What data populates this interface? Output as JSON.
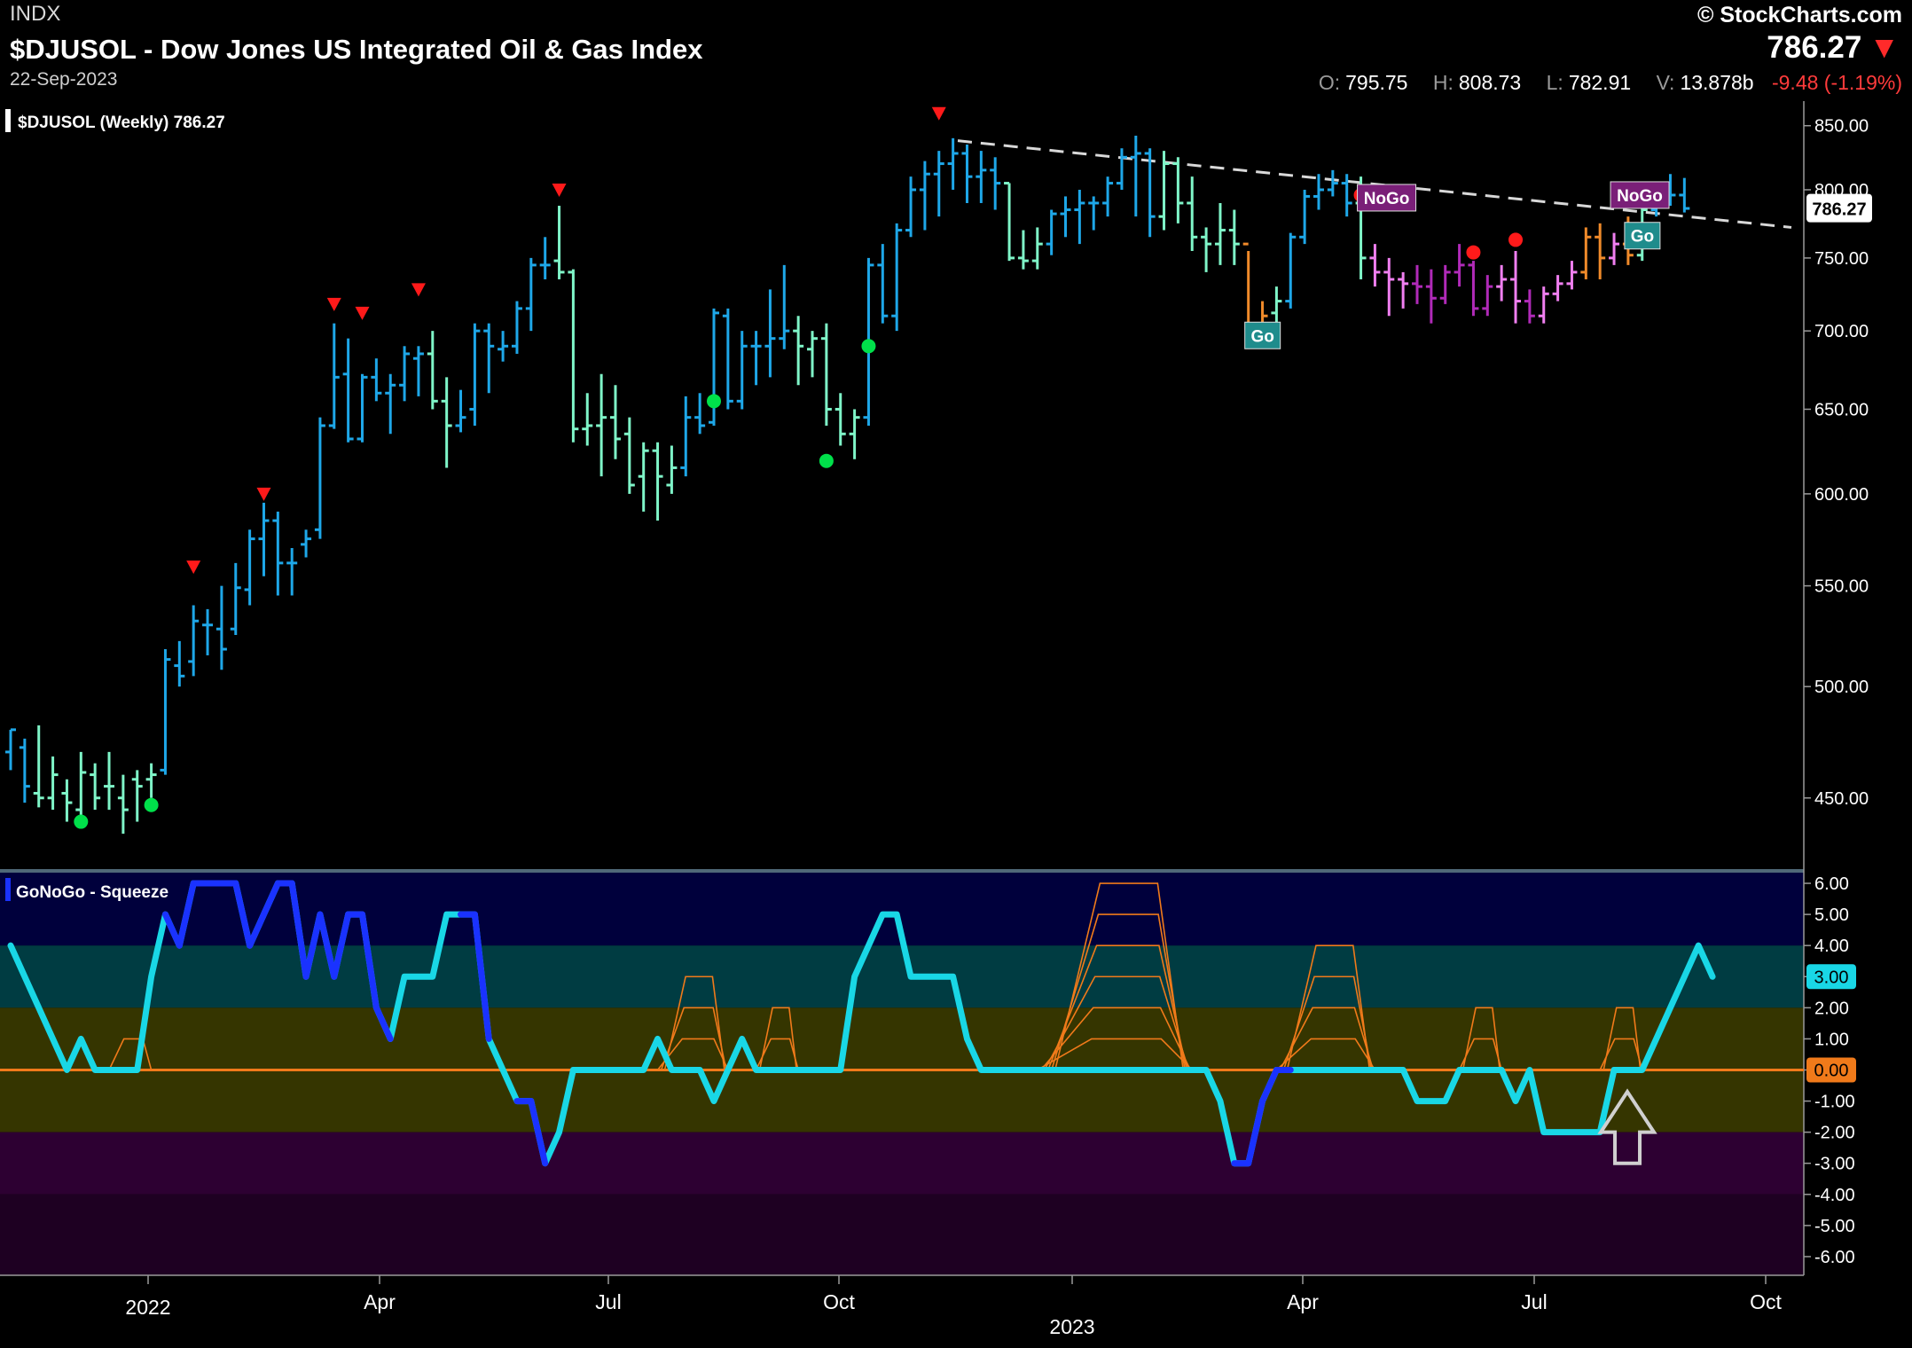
{
  "header": {
    "exchange": "INDX",
    "title": "$DJUSOL - Dow Jones US Integrated Oil & Gas Index",
    "date": "22-Sep-2023",
    "brand": "© StockCharts.com",
    "last_price": "786.27",
    "open_label": "O:",
    "open": "795.75",
    "high_label": "H:",
    "high": "808.73",
    "low_label": "L:",
    "low": "782.91",
    "volume_label": "V:",
    "volume": "13.878b",
    "change": "-9.48 (-1.19%)"
  },
  "colors": {
    "bright_blue": "#1ea7e8",
    "aqua": "#7ff5c8",
    "pink": "#f07ff0",
    "purple": "#b02ab8",
    "amber": "#f08a2a",
    "oscillator_cyan": "#19d7e6",
    "oscillator_blue": "#1a32ff",
    "zero_line": "#f07a1a",
    "up_dot": "#00e04a",
    "down_marker": "#ff1a1a"
  },
  "chart_data": [
    {
      "type": "ohlc-bar",
      "legend": "$DJUSOL (Weekly) 786.27",
      "last_value_tag": "786.27",
      "y_scale": "log",
      "ylim": [
        420,
        870
      ],
      "y_ticks": [
        "850.00",
        "800.00",
        "750.00",
        "700.00",
        "650.00",
        "600.00",
        "550.00",
        "500.00",
        "450.00"
      ],
      "x_labels": [
        "2022",
        "Apr",
        "Jul",
        "Oct",
        "2023",
        "Apr",
        "Jul",
        "Oct"
      ],
      "trendline": {
        "style": "dashed",
        "from": 838,
        "to": 772
      },
      "bars": [
        [
          470,
          480,
          462,
          480,
          "bright_blue"
        ],
        [
          472,
          476,
          448,
          455,
          "bright_blue"
        ],
        [
          452,
          482,
          446,
          450,
          "aqua"
        ],
        [
          450,
          468,
          445,
          460,
          "aqua"
        ],
        [
          452,
          458,
          440,
          448,
          "aqua"
        ],
        [
          445,
          470,
          440,
          461,
          "aqua"
        ],
        [
          460,
          465,
          445,
          450,
          "aqua"
        ],
        [
          455,
          470,
          445,
          455,
          "aqua"
        ],
        [
          450,
          460,
          435,
          445,
          "aqua"
        ],
        [
          458,
          462,
          440,
          455,
          "aqua"
        ],
        [
          458,
          465,
          450,
          460,
          "aqua"
        ],
        [
          462,
          518,
          460,
          513,
          "bright_blue"
        ],
        [
          510,
          522,
          500,
          505,
          "bright_blue"
        ],
        [
          512,
          540,
          505,
          532,
          "bright_blue"
        ],
        [
          530,
          538,
          515,
          530,
          "bright_blue"
        ],
        [
          528,
          550,
          508,
          518,
          "bright_blue"
        ],
        [
          528,
          562,
          525,
          549,
          "bright_blue"
        ],
        [
          548,
          580,
          540,
          575,
          "bright_blue"
        ],
        [
          575,
          595,
          555,
          585,
          "bright_blue"
        ],
        [
          585,
          590,
          545,
          562,
          "bright_blue"
        ],
        [
          562,
          570,
          545,
          562,
          "bright_blue"
        ],
        [
          572,
          580,
          565,
          575,
          "bright_blue"
        ],
        [
          580,
          645,
          575,
          640,
          "bright_blue"
        ],
        [
          640,
          705,
          638,
          670,
          "bright_blue"
        ],
        [
          672,
          695,
          630,
          632,
          "bright_blue"
        ],
        [
          632,
          672,
          630,
          670,
          "bright_blue"
        ],
        [
          670,
          682,
          655,
          660,
          "bright_blue"
        ],
        [
          660,
          672,
          635,
          665,
          "bright_blue"
        ],
        [
          665,
          690,
          655,
          685,
          "bright_blue"
        ],
        [
          682,
          690,
          658,
          685,
          "bright_blue"
        ],
        [
          685,
          700,
          650,
          655,
          "aqua"
        ],
        [
          655,
          670,
          615,
          640,
          "aqua"
        ],
        [
          640,
          662,
          636,
          645,
          "bright_blue"
        ],
        [
          650,
          705,
          640,
          700,
          "bright_blue"
        ],
        [
          700,
          705,
          660,
          690,
          "bright_blue"
        ],
        [
          688,
          700,
          680,
          690,
          "bright_blue"
        ],
        [
          690,
          720,
          685,
          715,
          "bright_blue"
        ],
        [
          715,
          750,
          700,
          745,
          "bright_blue"
        ],
        [
          745,
          765,
          735,
          745,
          "bright_blue"
        ],
        [
          748,
          788,
          735,
          740,
          "aqua"
        ],
        [
          740,
          742,
          630,
          638,
          "aqua"
        ],
        [
          638,
          660,
          628,
          640,
          "aqua"
        ],
        [
          640,
          672,
          610,
          645,
          "aqua"
        ],
        [
          645,
          665,
          620,
          632,
          "aqua"
        ],
        [
          635,
          645,
          600,
          605,
          "aqua"
        ],
        [
          610,
          630,
          590,
          625,
          "aqua"
        ],
        [
          625,
          630,
          585,
          610,
          "aqua"
        ],
        [
          605,
          628,
          600,
          615,
          "aqua"
        ],
        [
          615,
          658,
          610,
          645,
          "bright_blue"
        ],
        [
          645,
          660,
          635,
          640,
          "bright_blue"
        ],
        [
          642,
          715,
          640,
          712,
          "bright_blue"
        ],
        [
          710,
          715,
          650,
          655,
          "bright_blue"
        ],
        [
          655,
          700,
          650,
          690,
          "bright_blue"
        ],
        [
          690,
          700,
          665,
          690,
          "bright_blue"
        ],
        [
          690,
          728,
          670,
          695,
          "bright_blue"
        ],
        [
          695,
          745,
          688,
          700,
          "bright_blue"
        ],
        [
          700,
          710,
          665,
          690,
          "aqua"
        ],
        [
          688,
          700,
          670,
          695,
          "aqua"
        ],
        [
          695,
          705,
          640,
          650,
          "aqua"
        ],
        [
          650,
          660,
          628,
          635,
          "aqua"
        ],
        [
          635,
          650,
          620,
          645,
          "aqua"
        ],
        [
          645,
          750,
          640,
          745,
          "bright_blue"
        ],
        [
          745,
          760,
          705,
          710,
          "bright_blue"
        ],
        [
          710,
          775,
          700,
          770,
          "bright_blue"
        ],
        [
          770,
          810,
          765,
          800,
          "bright_blue"
        ],
        [
          800,
          822,
          770,
          812,
          "bright_blue"
        ],
        [
          812,
          830,
          780,
          820,
          "bright_blue"
        ],
        [
          820,
          840,
          800,
          828,
          "bright_blue"
        ],
        [
          828,
          835,
          790,
          810,
          "bright_blue"
        ],
        [
          810,
          830,
          790,
          815,
          "bright_blue"
        ],
        [
          815,
          825,
          785,
          805,
          "bright_blue"
        ],
        [
          805,
          805,
          748,
          750,
          "aqua"
        ],
        [
          750,
          770,
          742,
          748,
          "aqua"
        ],
        [
          748,
          772,
          742,
          760,
          "aqua"
        ],
        [
          760,
          785,
          752,
          782,
          "bright_blue"
        ],
        [
          782,
          795,
          765,
          785,
          "bright_blue"
        ],
        [
          785,
          800,
          760,
          790,
          "bright_blue"
        ],
        [
          790,
          795,
          770,
          790,
          "bright_blue"
        ],
        [
          790,
          810,
          780,
          805,
          "bright_blue"
        ],
        [
          805,
          832,
          800,
          825,
          "bright_blue"
        ],
        [
          825,
          842,
          780,
          828,
          "bright_blue"
        ],
        [
          828,
          832,
          765,
          780,
          "bright_blue"
        ],
        [
          780,
          830,
          770,
          820,
          "aqua"
        ],
        [
          820,
          825,
          775,
          790,
          "aqua"
        ],
        [
          790,
          810,
          755,
          765,
          "aqua"
        ],
        [
          765,
          772,
          740,
          760,
          "aqua"
        ],
        [
          760,
          790,
          745,
          770,
          "aqua"
        ],
        [
          770,
          785,
          745,
          760,
          "aqua"
        ],
        [
          760,
          755,
          690,
          700,
          "amber"
        ],
        [
          700,
          720,
          695,
          710,
          "amber"
        ],
        [
          712,
          730,
          705,
          720,
          "aqua"
        ],
        [
          720,
          768,
          715,
          765,
          "bright_blue"
        ],
        [
          765,
          800,
          760,
          795,
          "bright_blue"
        ],
        [
          795,
          812,
          785,
          800,
          "bright_blue"
        ],
        [
          800,
          815,
          795,
          805,
          "bright_blue"
        ],
        [
          805,
          812,
          780,
          790,
          "bright_blue"
        ],
        [
          790,
          810,
          735,
          750,
          "aqua"
        ],
        [
          750,
          760,
          730,
          740,
          "pink"
        ],
        [
          740,
          750,
          710,
          735,
          "pink"
        ],
        [
          735,
          740,
          715,
          732,
          "pink"
        ],
        [
          732,
          745,
          718,
          730,
          "purple"
        ],
        [
          730,
          742,
          705,
          722,
          "purple"
        ],
        [
          722,
          745,
          718,
          740,
          "purple"
        ],
        [
          740,
          760,
          730,
          745,
          "purple"
        ],
        [
          745,
          748,
          710,
          715,
          "purple"
        ],
        [
          715,
          738,
          710,
          730,
          "purple"
        ],
        [
          730,
          745,
          720,
          735,
          "pink"
        ],
        [
          735,
          755,
          705,
          720,
          "pink"
        ],
        [
          720,
          728,
          705,
          710,
          "purple"
        ],
        [
          710,
          730,
          705,
          725,
          "pink"
        ],
        [
          725,
          738,
          720,
          732,
          "pink"
        ],
        [
          732,
          748,
          728,
          740,
          "pink"
        ],
        [
          740,
          772,
          735,
          765,
          "amber"
        ],
        [
          765,
          775,
          735,
          750,
          "amber"
        ],
        [
          750,
          768,
          745,
          760,
          "pink"
        ],
        [
          760,
          780,
          745,
          752,
          "amber"
        ],
        [
          752,
          790,
          748,
          785,
          "aqua"
        ],
        [
          785,
          802,
          780,
          795,
          "bright_blue"
        ],
        [
          795,
          812,
          788,
          796,
          "bright_blue"
        ],
        [
          796,
          809,
          783,
          786,
          "bright_blue"
        ]
      ],
      "up_dots": [
        {
          "bar": 5,
          "price": 440
        },
        {
          "bar": 10,
          "price": 447
        },
        {
          "bar": 50,
          "price": 655
        },
        {
          "bar": 58,
          "price": 619
        },
        {
          "bar": 61,
          "price": 690
        }
      ],
      "down_markers": [
        {
          "bar": 13,
          "price": 560
        },
        {
          "bar": 18,
          "price": 600
        },
        {
          "bar": 23,
          "price": 718
        },
        {
          "bar": 25,
          "price": 712
        },
        {
          "bar": 29,
          "price": 728
        },
        {
          "bar": 39,
          "price": 800
        },
        {
          "bar": 66,
          "price": 860
        }
      ],
      "bear_dots": [
        {
          "bar": 96,
          "price": 796
        },
        {
          "bar": 104,
          "price": 754
        },
        {
          "bar": 107,
          "price": 763
        }
      ],
      "labels": [
        {
          "text": "Go",
          "bar": 88,
          "price": 697,
          "color": "#1f8c8c"
        },
        {
          "text": "NoGo",
          "bar": 96,
          "price": 794,
          "color": "#7a1f78"
        },
        {
          "text": "NoGo",
          "bar": 114,
          "price": 796,
          "color": "#7a1f78"
        },
        {
          "text": "Go",
          "bar": 115,
          "price": 766,
          "color": "#1f8c8c"
        }
      ]
    },
    {
      "type": "line",
      "name": "GoNoGo - Squeeze",
      "last_value_tag": "3.00",
      "zero_tag": "0.00",
      "ylim": [
        -6.6,
        6.4
      ],
      "y_ticks": [
        "6.00",
        "5.00",
        "4.00",
        "3.00",
        "2.00",
        "1.00",
        "0.00",
        "-1.00",
        "-2.00",
        "-3.00",
        "-4.00",
        "-5.00",
        "-6.00"
      ],
      "values": [
        4,
        3,
        2,
        1,
        0,
        1,
        0,
        0,
        0,
        0,
        3,
        5,
        4,
        6,
        6,
        6,
        6,
        4,
        5,
        6,
        6,
        3,
        5,
        3,
        5,
        5,
        2,
        1,
        3,
        3,
        3,
        5,
        5,
        5,
        1,
        0,
        -1,
        -1,
        -3,
        -2,
        0,
        0,
        0,
        0,
        0,
        0,
        1,
        0,
        0,
        0,
        -1,
        0,
        1,
        0,
        0,
        0,
        0,
        0,
        0,
        0,
        3,
        4,
        5,
        5,
        3,
        3,
        3,
        3,
        1,
        0,
        0,
        0,
        0,
        0,
        0,
        0,
        0,
        0,
        0,
        0,
        0,
        0,
        0,
        0,
        0,
        0,
        -1,
        -3,
        -3,
        -1,
        0,
        0,
        0,
        0,
        0,
        0,
        0,
        0,
        0,
        0,
        -1,
        -1,
        -1,
        0,
        0,
        0,
        0,
        -1,
        0,
        -2,
        -2,
        -2,
        -2,
        -2,
        0,
        0,
        0,
        1,
        2,
        3,
        4,
        3
      ],
      "dark_blue_indices": [
        11,
        12,
        13,
        14,
        15,
        16,
        17,
        18,
        19,
        20,
        21,
        22,
        23,
        24,
        25,
        26,
        27,
        32,
        33,
        34,
        36,
        37,
        38,
        87,
        88,
        89,
        90,
        91
      ],
      "squeeze_ladders": [
        {
          "start": 7,
          "end": 10,
          "height": 1
        },
        {
          "start": 46,
          "end": 51,
          "height": 3
        },
        {
          "start": 53,
          "end": 56,
          "height": 2
        },
        {
          "start": 73,
          "end": 84,
          "height": 6
        },
        {
          "start": 90,
          "end": 97,
          "height": 4
        },
        {
          "start": 103,
          "end": 106,
          "height": 2
        },
        {
          "start": 113,
          "end": 116,
          "height": 2
        }
      ],
      "arrow": {
        "bar": 114,
        "direction": "up"
      }
    }
  ]
}
